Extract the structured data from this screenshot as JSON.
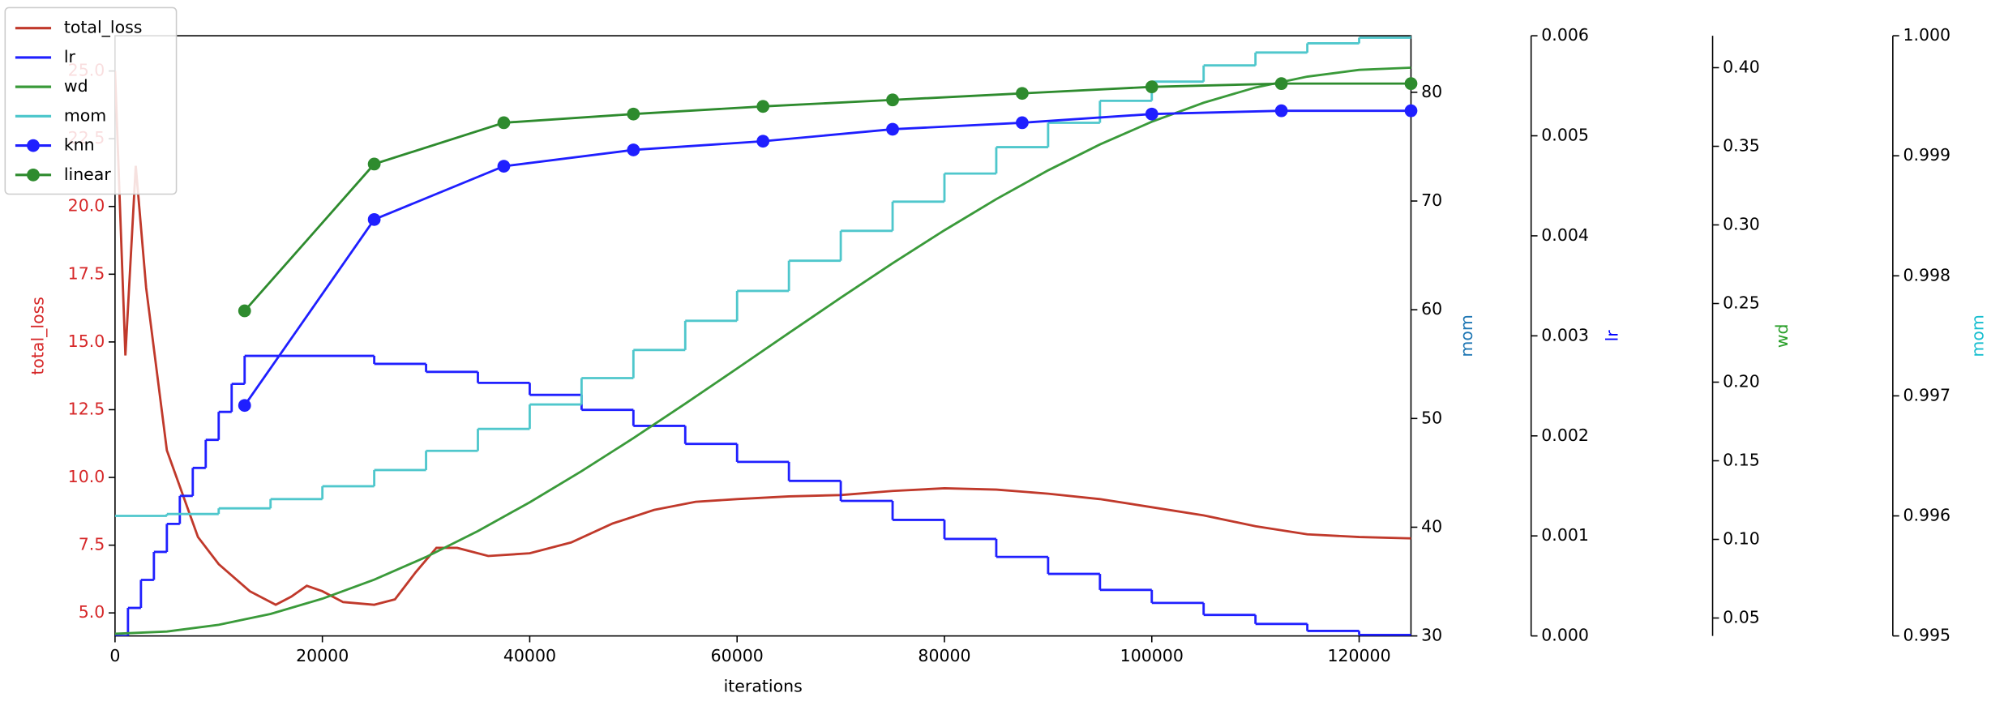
{
  "chart_data": {
    "type": "line",
    "x_label": "iterations",
    "xlim": [
      0,
      125000
    ],
    "xticks": [
      0,
      20000,
      40000,
      60000,
      80000,
      100000,
      120000
    ],
    "axes": [
      {
        "label": "total_loss",
        "color": "#d62728",
        "ylim": [
          4.15,
          26.3
        ],
        "yticks": [
          {
            "value": 5,
            "label": "5.0"
          },
          {
            "value": 7.5,
            "label": "7.5"
          },
          {
            "value": 10,
            "label": "10.0"
          },
          {
            "value": 12.5,
            "label": "12.5"
          },
          {
            "value": 15,
            "label": "15.0"
          },
          {
            "value": 17.5,
            "label": "17.5"
          },
          {
            "value": 20,
            "label": "20.0"
          },
          {
            "value": 22.5,
            "label": "22.5"
          },
          {
            "value": 25,
            "label": "25.0"
          }
        ]
      },
      {
        "label": "mom",
        "color": "#1f77b4",
        "ylim": [
          30,
          85.2
        ],
        "yticks": [
          30,
          40,
          50,
          60,
          70,
          80
        ]
      },
      {
        "label": "lr",
        "color": "#0000ff",
        "ylim": [
          0,
          0.006
        ],
        "yticks": [
          {
            "value": 0,
            "label": "0.000"
          },
          {
            "value": 0.001,
            "label": "0.001"
          },
          {
            "value": 0.002,
            "label": "0.002"
          },
          {
            "value": 0.003,
            "label": "0.003"
          },
          {
            "value": 0.004,
            "label": "0.004"
          },
          {
            "value": 0.005,
            "label": "0.005"
          },
          {
            "value": 0.006,
            "label": "0.006"
          }
        ]
      },
      {
        "label": "wd",
        "color": "#2ca02c",
        "ylim": [
          0.0386,
          0.4203
        ],
        "yticks": [
          0.05,
          {
            "value": 0.1,
            "label": "0.10"
          },
          0.15,
          {
            "value": 0.2,
            "label": "0.20"
          },
          0.25,
          {
            "value": 0.3,
            "label": "0.30"
          },
          0.35,
          {
            "value": 0.4,
            "label": "0.40"
          }
        ]
      },
      {
        "label": "mom",
        "color": "#17becf",
        "ylim": [
          0.995,
          1.0
        ],
        "yticks": [
          0.995,
          0.996,
          0.997,
          0.998,
          0.999,
          {
            "value": 1.0,
            "label": "1.000"
          }
        ]
      }
    ],
    "series": [
      {
        "name": "total_loss",
        "color": "#c0392b",
        "axis": 0,
        "drawstyle": "line",
        "x": [
          0,
          1000,
          2000,
          3000,
          5000,
          8000,
          10000,
          13000,
          15500,
          17000,
          18500,
          20000,
          22000,
          25000,
          27000,
          29000,
          31000,
          33000,
          36000,
          40000,
          44000,
          48000,
          52000,
          56000,
          60000,
          65000,
          70000,
          75000,
          80000,
          85000,
          90000,
          95000,
          100000,
          105000,
          110000,
          115000,
          120000,
          125000
        ],
        "values": [
          25.0,
          14.5,
          21.5,
          17.0,
          11.0,
          7.8,
          6.8,
          5.8,
          5.3,
          5.6,
          6.0,
          5.8,
          5.4,
          5.3,
          5.5,
          6.5,
          7.4,
          7.4,
          7.1,
          7.2,
          7.6,
          8.3,
          8.8,
          9.1,
          9.2,
          9.3,
          9.35,
          9.5,
          9.6,
          9.55,
          9.4,
          9.2,
          8.9,
          8.6,
          8.2,
          7.9,
          7.8,
          7.75
        ]
      },
      {
        "name": "lr",
        "color": "#2020ff",
        "axis": 2,
        "drawstyle": "steps",
        "x": [
          0,
          1250,
          2500,
          3750,
          5000,
          6250,
          7500,
          8750,
          10000,
          11250,
          12500,
          25000,
          30000,
          35000,
          40000,
          45000,
          50000,
          55000,
          60000,
          65000,
          70000,
          75000,
          80000,
          85000,
          90000,
          95000,
          100000,
          105000,
          110000,
          115000,
          120000,
          125000
        ],
        "values": [
          0,
          0.00028,
          0.00056,
          0.00084,
          0.00112,
          0.0014,
          0.00168,
          0.00196,
          0.00224,
          0.00252,
          0.0028,
          0.00272,
          0.00264,
          0.00253,
          0.00241,
          0.00226,
          0.0021,
          0.00192,
          0.00174,
          0.00155,
          0.00135,
          0.00116,
          0.00097,
          0.00079,
          0.00062,
          0.00046,
          0.00033,
          0.00021,
          0.00012,
          5e-05,
          1e-05,
          0
        ]
      },
      {
        "name": "wd",
        "color": "#3a9a3a",
        "axis": 3,
        "drawstyle": "line",
        "x": [
          0,
          5000,
          10000,
          15000,
          20000,
          25000,
          30000,
          35000,
          40000,
          45000,
          50000,
          55000,
          60000,
          65000,
          70000,
          75000,
          80000,
          85000,
          90000,
          95000,
          100000,
          105000,
          110000,
          115000,
          120000,
          125000
        ],
        "values": [
          0.04,
          0.0414,
          0.0457,
          0.0526,
          0.0623,
          0.0744,
          0.0888,
          0.1053,
          0.1236,
          0.1434,
          0.1644,
          0.1863,
          0.2087,
          0.2313,
          0.2537,
          0.2756,
          0.2966,
          0.3164,
          0.3347,
          0.3512,
          0.3656,
          0.3777,
          0.3874,
          0.3943,
          0.3986,
          0.4
        ]
      },
      {
        "name": "mom",
        "color": "#4fc7cc",
        "axis": 4,
        "drawstyle": "steps",
        "x": [
          0,
          5000,
          10000,
          15000,
          20000,
          25000,
          30000,
          35000,
          40000,
          45000,
          50000,
          55000,
          60000,
          65000,
          70000,
          75000,
          80000,
          85000,
          90000,
          95000,
          100000,
          105000,
          110000,
          115000,
          120000,
          125000
        ],
        "values": [
          0.996,
          0.996016,
          0.996063,
          0.99614,
          0.996247,
          0.996382,
          0.996542,
          0.996725,
          0.996928,
          0.997148,
          0.997382,
          0.997625,
          0.997874,
          0.998126,
          0.998375,
          0.998618,
          0.998852,
          0.999072,
          0.999275,
          0.999458,
          0.999618,
          0.999753,
          0.99986,
          0.999937,
          0.999984,
          1.0
        ]
      },
      {
        "name": "knn",
        "color": "#1f1fff",
        "axis": 1,
        "drawstyle": "line",
        "marker": "o",
        "x": [
          12500,
          25000,
          37500,
          50000,
          62500,
          75000,
          87500,
          100000,
          112500,
          125000
        ],
        "values": [
          51.2,
          68.3,
          73.2,
          74.7,
          75.5,
          76.6,
          77.2,
          78.0,
          78.3,
          78.3
        ]
      },
      {
        "name": "linear",
        "color": "#2e8b2e",
        "axis": 1,
        "drawstyle": "line",
        "marker": "o",
        "x": [
          12500,
          25000,
          37500,
          50000,
          62500,
          75000,
          87500,
          100000,
          112500,
          125000
        ],
        "values": [
          59.9,
          73.4,
          77.2,
          78.0,
          78.7,
          79.3,
          79.9,
          80.5,
          80.8,
          80.8
        ]
      }
    ]
  }
}
